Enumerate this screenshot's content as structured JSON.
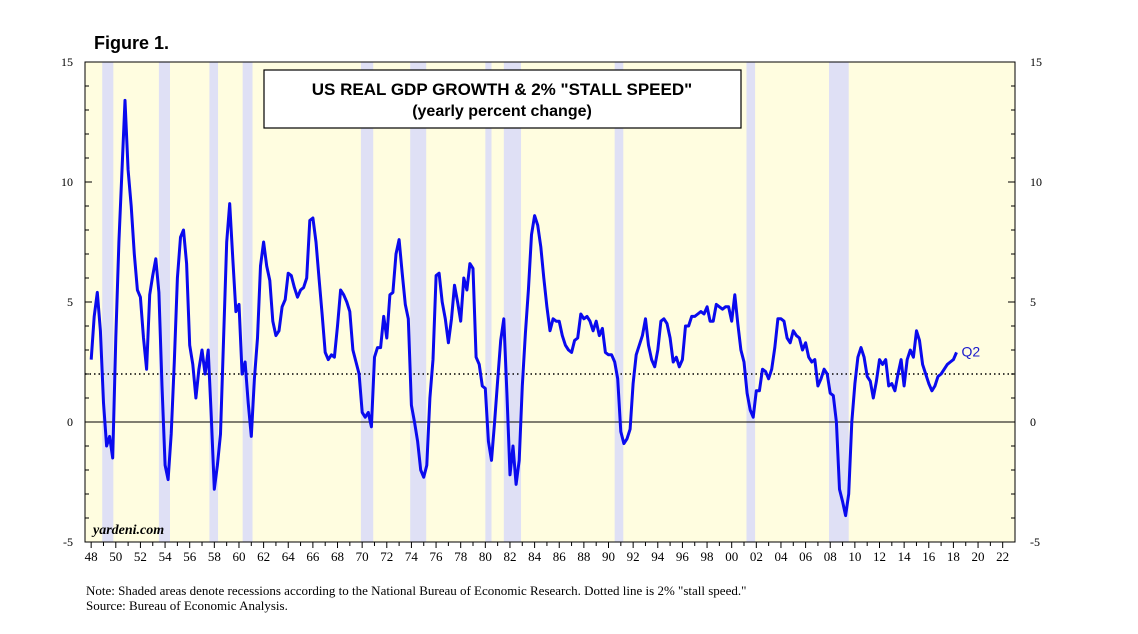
{
  "figure_label": "Figure 1.",
  "notes": {
    "line1": "Note: Shaded areas denote recessions according to the National Bureau of Economic Research. Dotted line is 2% \"stall speed.\"",
    "line2": "Source: Bureau of Economic Analysis."
  },
  "chart_data": {
    "type": "line",
    "title": "US REAL GDP GROWTH & 2% \"STALL SPEED\"",
    "subtitle": "(yearly percent change)",
    "watermark": "yardeni.com",
    "end_label": "Q2",
    "xlim": [
      1947.5,
      2023
    ],
    "ylim": [
      -5,
      15
    ],
    "y_ticks": [
      -5,
      0,
      5,
      10,
      15
    ],
    "x_ticks": [
      1948,
      1950,
      1952,
      1954,
      1956,
      1958,
      1960,
      1962,
      1964,
      1966,
      1968,
      1970,
      1972,
      1974,
      1976,
      1978,
      1980,
      1982,
      1984,
      1986,
      1988,
      1990,
      1992,
      1994,
      1996,
      1998,
      2000,
      2002,
      2004,
      2006,
      2008,
      2010,
      2012,
      2014,
      2016,
      2018,
      2020,
      2022
    ],
    "x_tick_labels": [
      "48",
      "50",
      "52",
      "54",
      "56",
      "58",
      "60",
      "62",
      "64",
      "66",
      "68",
      "70",
      "72",
      "74",
      "76",
      "78",
      "80",
      "82",
      "84",
      "86",
      "88",
      "90",
      "92",
      "94",
      "96",
      "98",
      "00",
      "02",
      "04",
      "06",
      "08",
      "10",
      "12",
      "14",
      "16",
      "18",
      "20",
      "22"
    ],
    "reference_line": {
      "value": 2,
      "style": "dotted"
    },
    "recessions": [
      [
        1948.9,
        1949.8
      ],
      [
        1953.5,
        1954.4
      ],
      [
        1957.6,
        1958.3
      ],
      [
        1960.3,
        1961.1
      ],
      [
        1969.9,
        1970.9
      ],
      [
        1973.9,
        1975.2
      ],
      [
        1980.0,
        1980.5
      ],
      [
        1981.5,
        1982.9
      ],
      [
        1990.5,
        1991.2
      ],
      [
        2001.2,
        2001.9
      ],
      [
        2007.9,
        2009.5
      ]
    ],
    "colors": {
      "line": "#0a0aee",
      "recession": "#dfe0f5",
      "background": "#fffde0",
      "end_label": "#1b1bcc"
    },
    "series": [
      {
        "name": "US Real GDP growth",
        "points": [
          [
            1948.0,
            2.6
          ],
          [
            1948.25,
            4.4
          ],
          [
            1948.5,
            5.4
          ],
          [
            1948.75,
            3.8
          ],
          [
            1949.0,
            0.8
          ],
          [
            1949.25,
            -1.0
          ],
          [
            1949.5,
            -0.6
          ],
          [
            1949.75,
            -1.5
          ],
          [
            1950.0,
            3.5
          ],
          [
            1950.25,
            7.5
          ],
          [
            1950.5,
            10.5
          ],
          [
            1950.75,
            13.4
          ],
          [
            1951.0,
            10.5
          ],
          [
            1951.25,
            9.0
          ],
          [
            1951.5,
            7.0
          ],
          [
            1951.75,
            5.5
          ],
          [
            1952.0,
            5.2
          ],
          [
            1952.25,
            3.5
          ],
          [
            1952.5,
            2.2
          ],
          [
            1952.75,
            5.3
          ],
          [
            1953.0,
            6.1
          ],
          [
            1953.25,
            6.8
          ],
          [
            1953.5,
            5.4
          ],
          [
            1953.75,
            1.5
          ],
          [
            1954.0,
            -1.8
          ],
          [
            1954.25,
            -2.4
          ],
          [
            1954.5,
            -0.5
          ],
          [
            1954.75,
            2.5
          ],
          [
            1955.0,
            6.0
          ],
          [
            1955.25,
            7.7
          ],
          [
            1955.5,
            8.0
          ],
          [
            1955.75,
            6.6
          ],
          [
            1956.0,
            3.2
          ],
          [
            1956.25,
            2.4
          ],
          [
            1956.5,
            1.0
          ],
          [
            1956.75,
            2.2
          ],
          [
            1957.0,
            3.0
          ],
          [
            1957.25,
            2.0
          ],
          [
            1957.5,
            3.0
          ],
          [
            1957.75,
            0.2
          ],
          [
            1958.0,
            -2.8
          ],
          [
            1958.25,
            -1.8
          ],
          [
            1958.5,
            -0.5
          ],
          [
            1958.75,
            3.5
          ],
          [
            1959.0,
            7.5
          ],
          [
            1959.25,
            9.1
          ],
          [
            1959.5,
            6.8
          ],
          [
            1959.75,
            4.6
          ],
          [
            1960.0,
            4.9
          ],
          [
            1960.25,
            2.0
          ],
          [
            1960.5,
            2.5
          ],
          [
            1960.75,
            0.8
          ],
          [
            1961.0,
            -0.6
          ],
          [
            1961.25,
            1.8
          ],
          [
            1961.5,
            3.5
          ],
          [
            1961.75,
            6.5
          ],
          [
            1962.0,
            7.5
          ],
          [
            1962.25,
            6.5
          ],
          [
            1962.5,
            5.9
          ],
          [
            1962.75,
            4.2
          ],
          [
            1963.0,
            3.6
          ],
          [
            1963.25,
            3.8
          ],
          [
            1963.5,
            4.8
          ],
          [
            1963.75,
            5.1
          ],
          [
            1964.0,
            6.2
          ],
          [
            1964.25,
            6.1
          ],
          [
            1964.5,
            5.6
          ],
          [
            1964.75,
            5.2
          ],
          [
            1965.0,
            5.5
          ],
          [
            1965.25,
            5.6
          ],
          [
            1965.5,
            6.0
          ],
          [
            1965.75,
            8.4
          ],
          [
            1966.0,
            8.5
          ],
          [
            1966.25,
            7.5
          ],
          [
            1966.5,
            6.0
          ],
          [
            1966.75,
            4.5
          ],
          [
            1967.0,
            2.9
          ],
          [
            1967.25,
            2.6
          ],
          [
            1967.5,
            2.8
          ],
          [
            1967.75,
            2.7
          ],
          [
            1968.0,
            4.0
          ],
          [
            1968.25,
            5.5
          ],
          [
            1968.5,
            5.3
          ],
          [
            1968.75,
            5.0
          ],
          [
            1969.0,
            4.6
          ],
          [
            1969.25,
            3.0
          ],
          [
            1969.5,
            2.5
          ],
          [
            1969.75,
            2.0
          ],
          [
            1970.0,
            0.4
          ],
          [
            1970.25,
            0.2
          ],
          [
            1970.5,
            0.4
          ],
          [
            1970.75,
            -0.2
          ],
          [
            1971.0,
            2.7
          ],
          [
            1971.25,
            3.1
          ],
          [
            1971.5,
            3.1
          ],
          [
            1971.75,
            4.4
          ],
          [
            1972.0,
            3.5
          ],
          [
            1972.25,
            5.3
          ],
          [
            1972.5,
            5.4
          ],
          [
            1972.75,
            7.0
          ],
          [
            1973.0,
            7.6
          ],
          [
            1973.25,
            6.2
          ],
          [
            1973.5,
            4.9
          ],
          [
            1973.75,
            4.3
          ],
          [
            1974.0,
            0.7
          ],
          [
            1974.25,
            0.0
          ],
          [
            1974.5,
            -0.8
          ],
          [
            1974.75,
            -2.0
          ],
          [
            1975.0,
            -2.3
          ],
          [
            1975.25,
            -1.8
          ],
          [
            1975.5,
            1.0
          ],
          [
            1975.75,
            2.6
          ],
          [
            1976.0,
            6.1
          ],
          [
            1976.25,
            6.2
          ],
          [
            1976.5,
            5.0
          ],
          [
            1976.75,
            4.3
          ],
          [
            1977.0,
            3.3
          ],
          [
            1977.25,
            4.3
          ],
          [
            1977.5,
            5.7
          ],
          [
            1977.75,
            5.0
          ],
          [
            1978.0,
            4.2
          ],
          [
            1978.25,
            6.0
          ],
          [
            1978.5,
            5.5
          ],
          [
            1978.75,
            6.6
          ],
          [
            1979.0,
            6.4
          ],
          [
            1979.25,
            2.7
          ],
          [
            1979.5,
            2.4
          ],
          [
            1979.75,
            1.5
          ],
          [
            1980.0,
            1.4
          ],
          [
            1980.25,
            -0.8
          ],
          [
            1980.5,
            -1.6
          ],
          [
            1980.75,
            0.0
          ],
          [
            1981.0,
            1.7
          ],
          [
            1981.25,
            3.4
          ],
          [
            1981.5,
            4.3
          ],
          [
            1981.75,
            1.2
          ],
          [
            1982.0,
            -2.2
          ],
          [
            1982.25,
            -1.0
          ],
          [
            1982.5,
            -2.6
          ],
          [
            1982.75,
            -1.6
          ],
          [
            1983.0,
            1.5
          ],
          [
            1983.25,
            3.7
          ],
          [
            1983.5,
            5.5
          ],
          [
            1983.75,
            7.8
          ],
          [
            1984.0,
            8.6
          ],
          [
            1984.25,
            8.2
          ],
          [
            1984.5,
            7.3
          ],
          [
            1984.75,
            6.0
          ],
          [
            1985.0,
            4.8
          ],
          [
            1985.25,
            3.8
          ],
          [
            1985.5,
            4.3
          ],
          [
            1985.75,
            4.2
          ],
          [
            1986.0,
            4.2
          ],
          [
            1986.25,
            3.6
          ],
          [
            1986.5,
            3.2
          ],
          [
            1986.75,
            3.0
          ],
          [
            1987.0,
            2.9
          ],
          [
            1987.25,
            3.4
          ],
          [
            1987.5,
            3.5
          ],
          [
            1987.75,
            4.5
          ],
          [
            1988.0,
            4.3
          ],
          [
            1988.25,
            4.4
          ],
          [
            1988.5,
            4.2
          ],
          [
            1988.75,
            3.8
          ],
          [
            1989.0,
            4.2
          ],
          [
            1989.25,
            3.6
          ],
          [
            1989.5,
            3.9
          ],
          [
            1989.75,
            2.9
          ],
          [
            1990.0,
            2.8
          ],
          [
            1990.25,
            2.8
          ],
          [
            1990.5,
            2.5
          ],
          [
            1990.75,
            1.8
          ],
          [
            1991.0,
            -0.4
          ],
          [
            1991.25,
            -0.9
          ],
          [
            1991.5,
            -0.7
          ],
          [
            1991.75,
            -0.3
          ],
          [
            1992.0,
            1.6
          ],
          [
            1992.25,
            2.8
          ],
          [
            1992.5,
            3.2
          ],
          [
            1992.75,
            3.6
          ],
          [
            1993.0,
            4.3
          ],
          [
            1993.25,
            3.2
          ],
          [
            1993.5,
            2.6
          ],
          [
            1993.75,
            2.3
          ],
          [
            1994.0,
            3.0
          ],
          [
            1994.25,
            4.2
          ],
          [
            1994.5,
            4.3
          ],
          [
            1994.75,
            4.1
          ],
          [
            1995.0,
            3.5
          ],
          [
            1995.25,
            2.5
          ],
          [
            1995.5,
            2.7
          ],
          [
            1995.75,
            2.3
          ],
          [
            1996.0,
            2.6
          ],
          [
            1996.25,
            4.0
          ],
          [
            1996.5,
            4.0
          ],
          [
            1996.75,
            4.4
          ],
          [
            1997.0,
            4.4
          ],
          [
            1997.25,
            4.5
          ],
          [
            1997.5,
            4.6
          ],
          [
            1997.75,
            4.5
          ],
          [
            1998.0,
            4.8
          ],
          [
            1998.25,
            4.2
          ],
          [
            1998.5,
            4.2
          ],
          [
            1998.75,
            4.9
          ],
          [
            1999.0,
            4.8
          ],
          [
            1999.25,
            4.7
          ],
          [
            1999.5,
            4.8
          ],
          [
            1999.75,
            4.8
          ],
          [
            2000.0,
            4.2
          ],
          [
            2000.25,
            5.3
          ],
          [
            2000.5,
            4.1
          ],
          [
            2000.75,
            3.0
          ],
          [
            2001.0,
            2.5
          ],
          [
            2001.25,
            1.2
          ],
          [
            2001.5,
            0.5
          ],
          [
            2001.75,
            0.2
          ],
          [
            2002.0,
            1.3
          ],
          [
            2002.25,
            1.3
          ],
          [
            2002.5,
            2.2
          ],
          [
            2002.75,
            2.1
          ],
          [
            2003.0,
            1.8
          ],
          [
            2003.25,
            2.2
          ],
          [
            2003.5,
            3.1
          ],
          [
            2003.75,
            4.3
          ],
          [
            2004.0,
            4.3
          ],
          [
            2004.25,
            4.2
          ],
          [
            2004.5,
            3.5
          ],
          [
            2004.75,
            3.3
          ],
          [
            2005.0,
            3.8
          ],
          [
            2005.25,
            3.6
          ],
          [
            2005.5,
            3.5
          ],
          [
            2005.75,
            3.0
          ],
          [
            2006.0,
            3.3
          ],
          [
            2006.25,
            2.7
          ],
          [
            2006.5,
            2.5
          ],
          [
            2006.75,
            2.6
          ],
          [
            2007.0,
            1.5
          ],
          [
            2007.25,
            1.8
          ],
          [
            2007.5,
            2.2
          ],
          [
            2007.75,
            2.0
          ],
          [
            2008.0,
            1.2
          ],
          [
            2008.25,
            1.1
          ],
          [
            2008.5,
            0.0
          ],
          [
            2008.75,
            -2.8
          ],
          [
            2009.0,
            -3.3
          ],
          [
            2009.25,
            -3.9
          ],
          [
            2009.5,
            -3.0
          ],
          [
            2009.75,
            0.0
          ],
          [
            2010.0,
            1.6
          ],
          [
            2010.25,
            2.7
          ],
          [
            2010.5,
            3.1
          ],
          [
            2010.75,
            2.7
          ],
          [
            2011.0,
            1.9
          ],
          [
            2011.25,
            1.7
          ],
          [
            2011.5,
            1.0
          ],
          [
            2011.75,
            1.7
          ],
          [
            2012.0,
            2.6
          ],
          [
            2012.25,
            2.4
          ],
          [
            2012.5,
            2.6
          ],
          [
            2012.75,
            1.5
          ],
          [
            2013.0,
            1.6
          ],
          [
            2013.25,
            1.3
          ],
          [
            2013.5,
            2.0
          ],
          [
            2013.75,
            2.6
          ],
          [
            2014.0,
            1.5
          ],
          [
            2014.25,
            2.6
          ],
          [
            2014.5,
            3.0
          ],
          [
            2014.75,
            2.7
          ],
          [
            2015.0,
            3.8
          ],
          [
            2015.25,
            3.4
          ],
          [
            2015.5,
            2.4
          ],
          [
            2015.75,
            2.0
          ],
          [
            2016.0,
            1.6
          ],
          [
            2016.25,
            1.3
          ],
          [
            2016.5,
            1.5
          ],
          [
            2016.75,
            1.9
          ],
          [
            2017.0,
            2.0
          ],
          [
            2017.25,
            2.2
          ],
          [
            2017.5,
            2.4
          ],
          [
            2017.75,
            2.5
          ],
          [
            2018.0,
            2.6
          ],
          [
            2018.25,
            2.9
          ]
        ]
      }
    ]
  }
}
